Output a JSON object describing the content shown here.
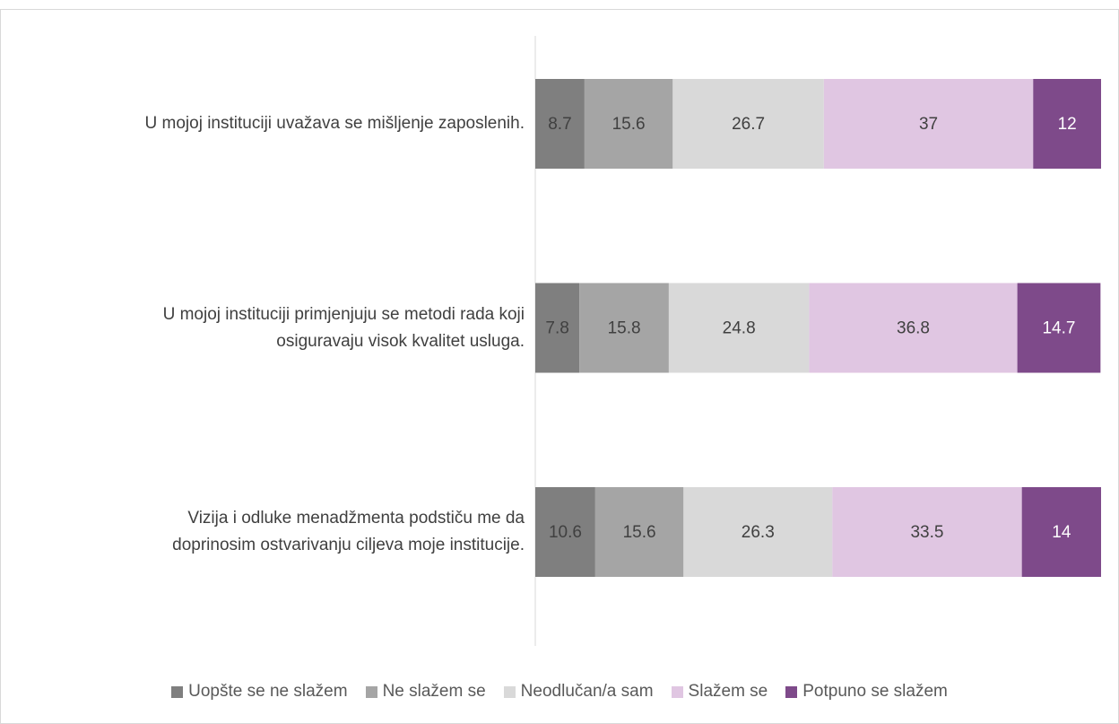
{
  "chart_data": {
    "type": "stacked_barh",
    "categories": [
      "U mojoj instituciji uvažava se mišljenje zaposlenih.",
      "U mojoj instituciji primjenjuju se metodi rada koji\nosiguravaju visok kvalitet usluga.",
      "Vizija i odluke menadžmenta podstiču me da\ndoprinosim ostvarivanju ciljeva moje institucije."
    ],
    "series": [
      {
        "name": "Uopšte se ne slažem",
        "color": "#7f7f7f",
        "label_color": "#404040",
        "values": [
          8.7,
          7.8,
          10.6
        ]
      },
      {
        "name": "Ne slažem se",
        "color": "#a5a5a5",
        "label_color": "#404040",
        "values": [
          15.6,
          15.8,
          15.6
        ]
      },
      {
        "name": "Neodlučan/a sam",
        "color": "#d9d9d9",
        "label_color": "#404040",
        "values": [
          26.7,
          24.8,
          26.3
        ]
      },
      {
        "name": "Slažem se",
        "color": "#e0c6e2",
        "label_color": "#404040",
        "values": [
          37,
          36.8,
          33.5
        ]
      },
      {
        "name": "Potpuno se slažem",
        "color": "#7e4a8a",
        "label_color": "#ffffff",
        "values": [
          12,
          14.7,
          14
        ]
      }
    ],
    "xlim": [
      0,
      100
    ],
    "legend": "bottom"
  }
}
